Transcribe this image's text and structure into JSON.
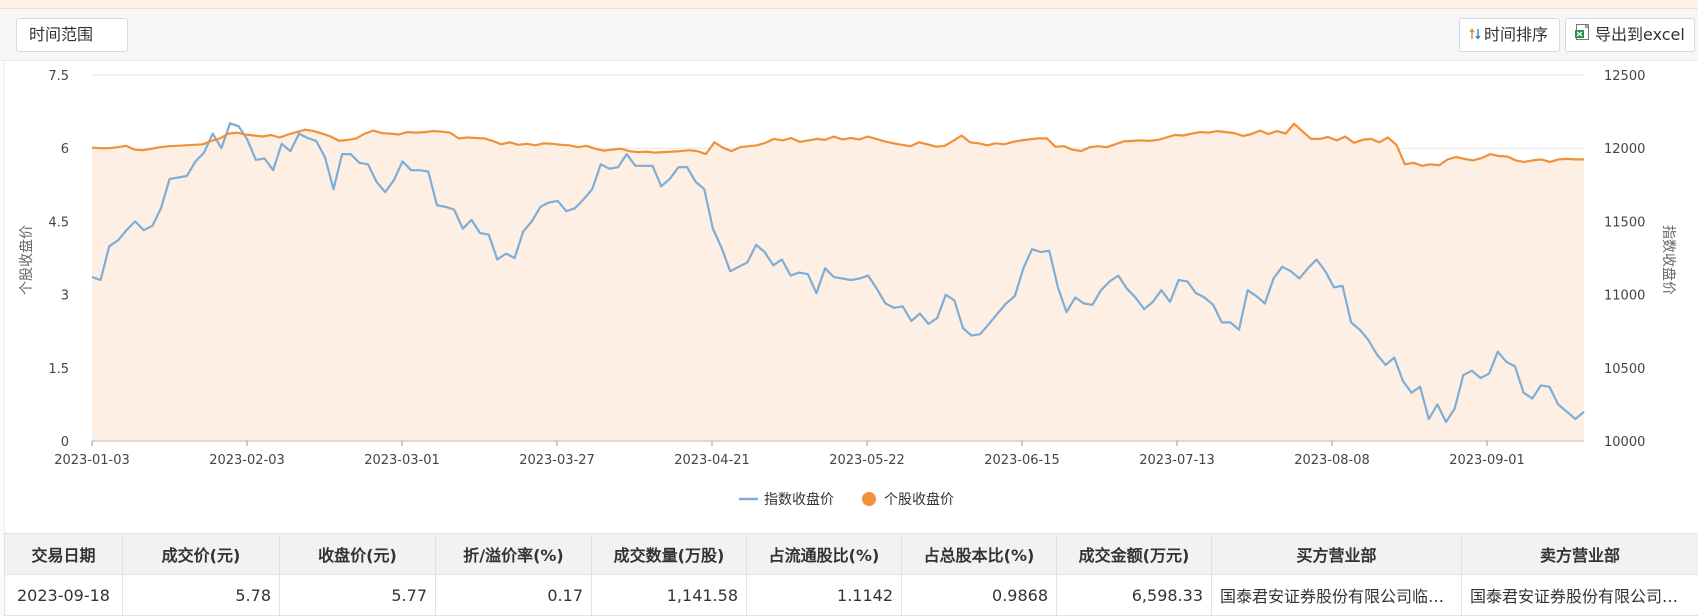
{
  "toolbar": {
    "range_label": "时间范围",
    "sort_label": "时间排序",
    "export_label": "导出到excel",
    "sort_icon": "sort-arrows-icon",
    "export_icon": "excel-file-icon"
  },
  "chart_data": {
    "type": "line",
    "ylabel_left": "个股收盘价",
    "ylabel_right": "指数收盘价",
    "yticks_left": [
      "7.5",
      "6",
      "4.5",
      "3",
      "1.5",
      "0"
    ],
    "yticks_right": [
      "12500",
      "12000",
      "11500",
      "11000",
      "10500",
      "10000"
    ],
    "ylim_left": [
      0,
      7.5
    ],
    "ylim_right": [
      10000,
      12500
    ],
    "xticks": [
      "2023-01-03",
      "2023-02-03",
      "2023-03-01",
      "2023-03-27",
      "2023-04-21",
      "2023-05-22",
      "2023-06-15",
      "2023-07-13",
      "2023-08-08",
      "2023-09-01"
    ],
    "grid": true,
    "legend_position": "bottom",
    "series": [
      {
        "name": "指数收盘价",
        "axis": "right",
        "color": "#7eadd6",
        "values": [
          11120,
          11100,
          11330,
          11370,
          11440,
          11500,
          11440,
          11470,
          11590,
          11790,
          11800,
          11810,
          11910,
          11970,
          12100,
          12000,
          12170,
          12150,
          12060,
          11920,
          11930,
          11850,
          12030,
          11980,
          12100,
          12070,
          12050,
          11940,
          11720,
          11960,
          11960,
          11900,
          11890,
          11770,
          11700,
          11780,
          11910,
          11850,
          11850,
          11840,
          11610,
          11600,
          11580,
          11450,
          11510,
          11420,
          11410,
          11240,
          11280,
          11250,
          11430,
          11500,
          11600,
          11630,
          11640,
          11570,
          11590,
          11650,
          11720,
          11890,
          11860,
          11870,
          11960,
          11880,
          11880,
          11880,
          11740,
          11790,
          11870,
          11870,
          11770,
          11720,
          11450,
          11320,
          11160,
          11190,
          11220,
          11340,
          11290,
          11200,
          11240,
          11130,
          11150,
          11140,
          11010,
          11180,
          11120,
          11110,
          11100,
          11110,
          11130,
          11040,
          10940,
          10910,
          10920,
          10820,
          10870,
          10800,
          10840,
          11000,
          10960,
          10770,
          10720,
          10730,
          10800,
          10870,
          10940,
          10990,
          11180,
          11310,
          11290,
          11300,
          11050,
          10880,
          10980,
          10940,
          10930,
          11030,
          11090,
          11130,
          11040,
          10980,
          10900,
          10950,
          11030,
          10950,
          11100,
          11090,
          11010,
          10980,
          10930,
          10810,
          10810,
          10760,
          11030,
          10990,
          10940,
          11110,
          11190,
          11160,
          11110,
          11180,
          11240,
          11160,
          11050,
          11060,
          10810,
          10760,
          10690,
          10590,
          10520,
          10570,
          10410,
          10330,
          10370,
          10150,
          10250,
          10130,
          10220,
          10450,
          10480,
          10430,
          10460,
          10610,
          10540,
          10510,
          10330,
          10290,
          10380,
          10370,
          10250,
          10200,
          10150,
          10200
        ]
      },
      {
        "name": "个股收盘价",
        "axis": "left",
        "color": "#f0913a",
        "values": [
          6.01,
          6.0,
          6.0,
          6.02,
          6.05,
          5.97,
          5.96,
          5.99,
          6.02,
          6.04,
          6.05,
          6.06,
          6.07,
          6.08,
          6.15,
          6.2,
          6.3,
          6.32,
          6.28,
          6.26,
          6.24,
          6.27,
          6.22,
          6.28,
          6.33,
          6.38,
          6.35,
          6.3,
          6.24,
          6.15,
          6.17,
          6.2,
          6.3,
          6.36,
          6.31,
          6.3,
          6.28,
          6.33,
          6.32,
          6.33,
          6.35,
          6.34,
          6.32,
          6.2,
          6.22,
          6.21,
          6.2,
          6.15,
          6.08,
          6.12,
          6.07,
          6.09,
          6.06,
          6.1,
          6.09,
          6.07,
          6.06,
          6.02,
          6.05,
          5.99,
          5.95,
          5.97,
          5.99,
          5.94,
          5.92,
          5.93,
          5.91,
          5.92,
          5.93,
          5.94,
          5.96,
          5.94,
          5.88,
          6.12,
          6.01,
          5.94,
          6.02,
          6.04,
          6.06,
          6.11,
          6.19,
          6.16,
          6.21,
          6.13,
          6.16,
          6.19,
          6.17,
          6.24,
          6.18,
          6.21,
          6.18,
          6.24,
          6.19,
          6.14,
          6.1,
          6.07,
          6.04,
          6.12,
          6.08,
          6.03,
          6.05,
          6.15,
          6.26,
          6.12,
          6.1,
          6.06,
          6.1,
          6.08,
          6.13,
          6.16,
          6.18,
          6.2,
          6.2,
          6.03,
          6.04,
          5.97,
          5.94,
          6.02,
          6.04,
          6.02,
          6.08,
          6.14,
          6.15,
          6.16,
          6.15,
          6.17,
          6.22,
          6.27,
          6.26,
          6.3,
          6.33,
          6.32,
          6.35,
          6.33,
          6.31,
          6.25,
          6.29,
          6.36,
          6.29,
          6.35,
          6.3,
          6.5,
          6.34,
          6.19,
          6.19,
          6.23,
          6.16,
          6.24,
          6.11,
          6.17,
          6.19,
          6.12,
          6.22,
          6.07,
          5.67,
          5.7,
          5.64,
          5.67,
          5.65,
          5.77,
          5.82,
          5.78,
          5.75,
          5.8,
          5.88,
          5.84,
          5.83,
          5.75,
          5.72,
          5.75,
          5.77,
          5.72,
          5.77,
          5.78,
          5.77,
          5.77
        ]
      }
    ]
  },
  "table": {
    "headers": [
      "交易日期",
      "成交价(元)",
      "收盘价(元)",
      "折/溢价率(%)",
      "成交数量(万股)",
      "占流通股比(%)",
      "占总股本比(%)",
      "成交金额(万元)",
      "买方营业部",
      "卖方营业部"
    ],
    "rows": [
      [
        "2023-09-18",
        "5.78",
        "5.77",
        "0.17",
        "1,141.58",
        "1.1142",
        "0.9868",
        "6,598.33",
        "国泰君安证券股份有限公司临沂沂蒙路证券营业部",
        "国泰君安证券股份有限公司临沂沂蒙路证券营业部"
      ]
    ]
  }
}
